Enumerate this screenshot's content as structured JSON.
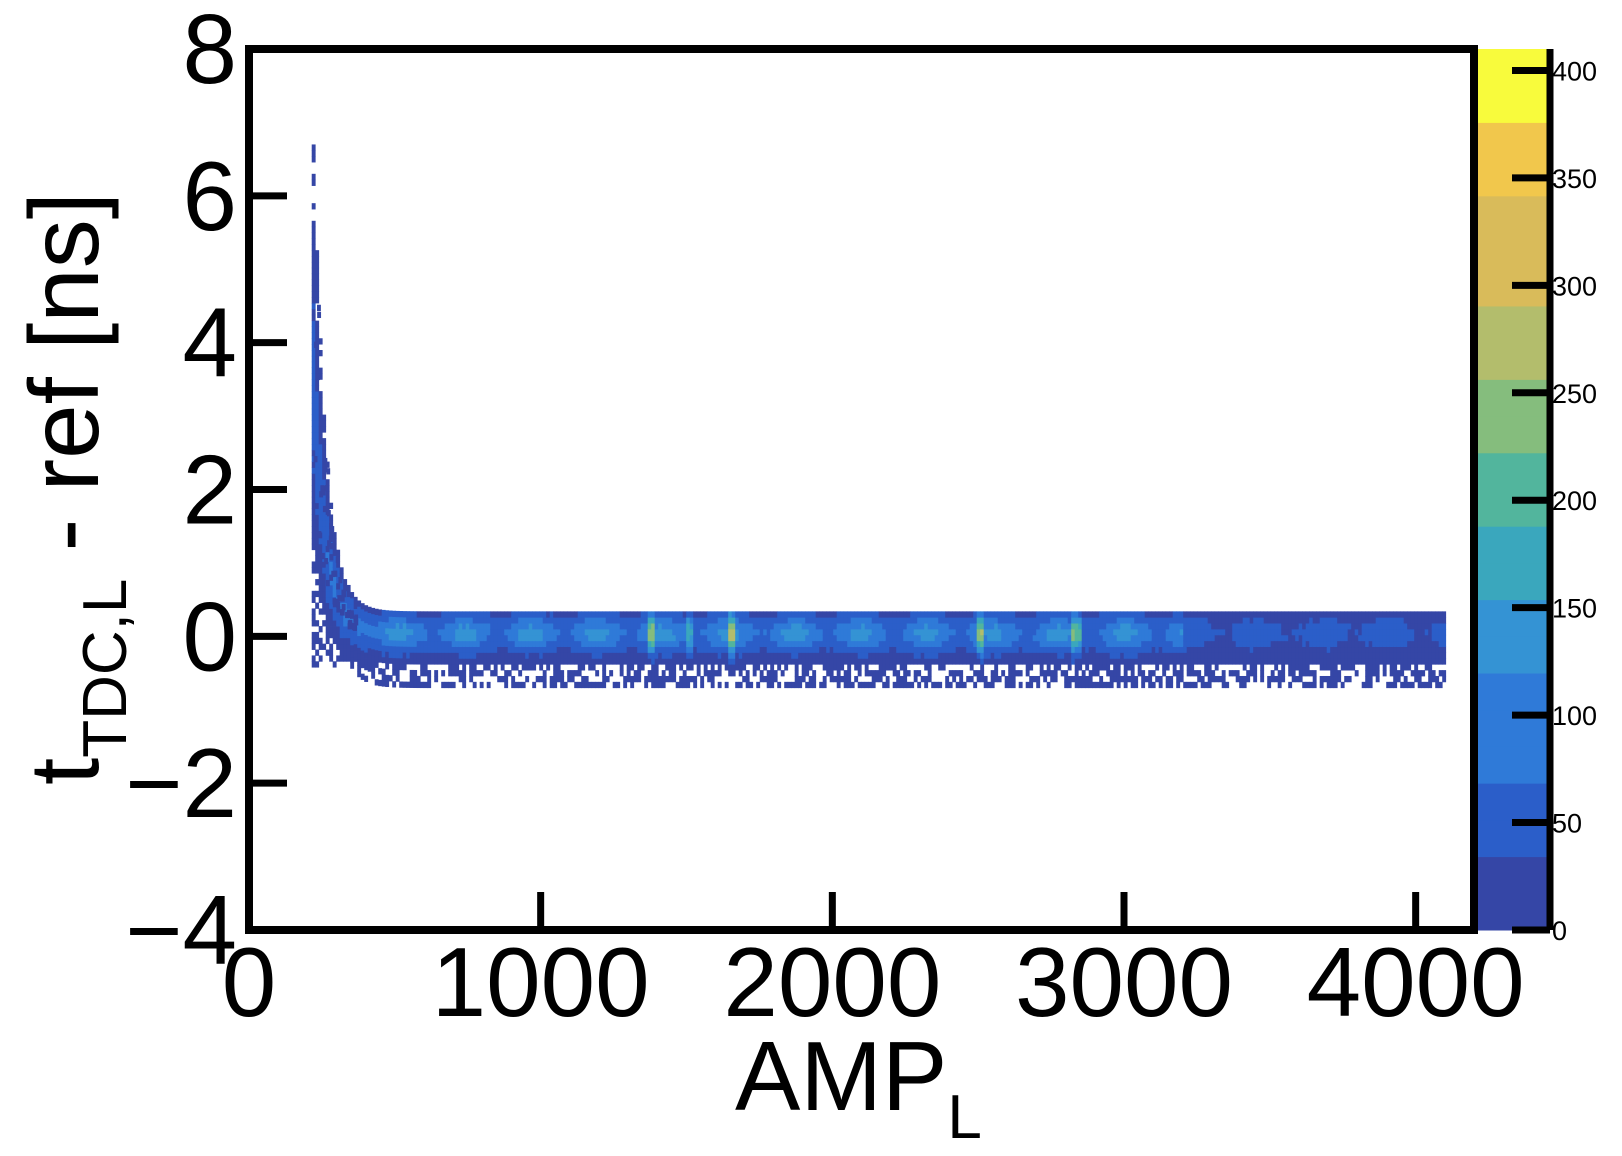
{
  "chart_data": {
    "type": "heatmap",
    "title": "",
    "xlabel": "AMP",
    "xlabel_subscript": "L",
    "ylabel_main": "t",
    "ylabel_subscript": "TDC,L",
    "ylabel_suffix": " - ref [ns]",
    "xlim": [
      0,
      4200
    ],
    "ylim": [
      -4,
      8
    ],
    "x_ticks": [
      {
        "value": 0,
        "label": "0"
      },
      {
        "value": 1000,
        "label": "1000"
      },
      {
        "value": 2000,
        "label": "2000"
      },
      {
        "value": 3000,
        "label": "3000"
      },
      {
        "value": 4000,
        "label": "4000"
      }
    ],
    "y_ticks": [
      {
        "value": -4,
        "label": "−4"
      },
      {
        "value": -2,
        "label": "−2"
      },
      {
        "value": 0,
        "label": "0"
      },
      {
        "value": 2,
        "label": "2"
      },
      {
        "value": 4,
        "label": "4"
      },
      {
        "value": 6,
        "label": "6"
      },
      {
        "value": 8,
        "label": "8"
      }
    ],
    "colorbar": {
      "min": 0,
      "max": 410,
      "ticks": [
        {
          "value": 0,
          "label": "0"
        },
        {
          "value": 50,
          "label": "50"
        },
        {
          "value": 100,
          "label": "100"
        },
        {
          "value": 150,
          "label": "150"
        },
        {
          "value": 200,
          "label": "200"
        },
        {
          "value": 250,
          "label": "250"
        },
        {
          "value": 300,
          "label": "300"
        },
        {
          "value": 350,
          "label": "350"
        },
        {
          "value": 400,
          "label": "400"
        }
      ],
      "colors": [
        "#3546a6",
        "#2b5ec9",
        "#2f7ad8",
        "#3493d4",
        "#3aa7bd",
        "#52b59d",
        "#85bd7d",
        "#b3bd6c",
        "#d9bb5a",
        "#f1c74c",
        "#f8fb3c"
      ]
    },
    "distribution": {
      "amp_threshold": 215,
      "amp_max": 4100,
      "time_walk_peak_ns": 6.1,
      "band_center_ns": 0,
      "band_halfwidth_ns": 0.3,
      "peak_count": 410
    },
    "grid": false,
    "grid_lines": false
  }
}
